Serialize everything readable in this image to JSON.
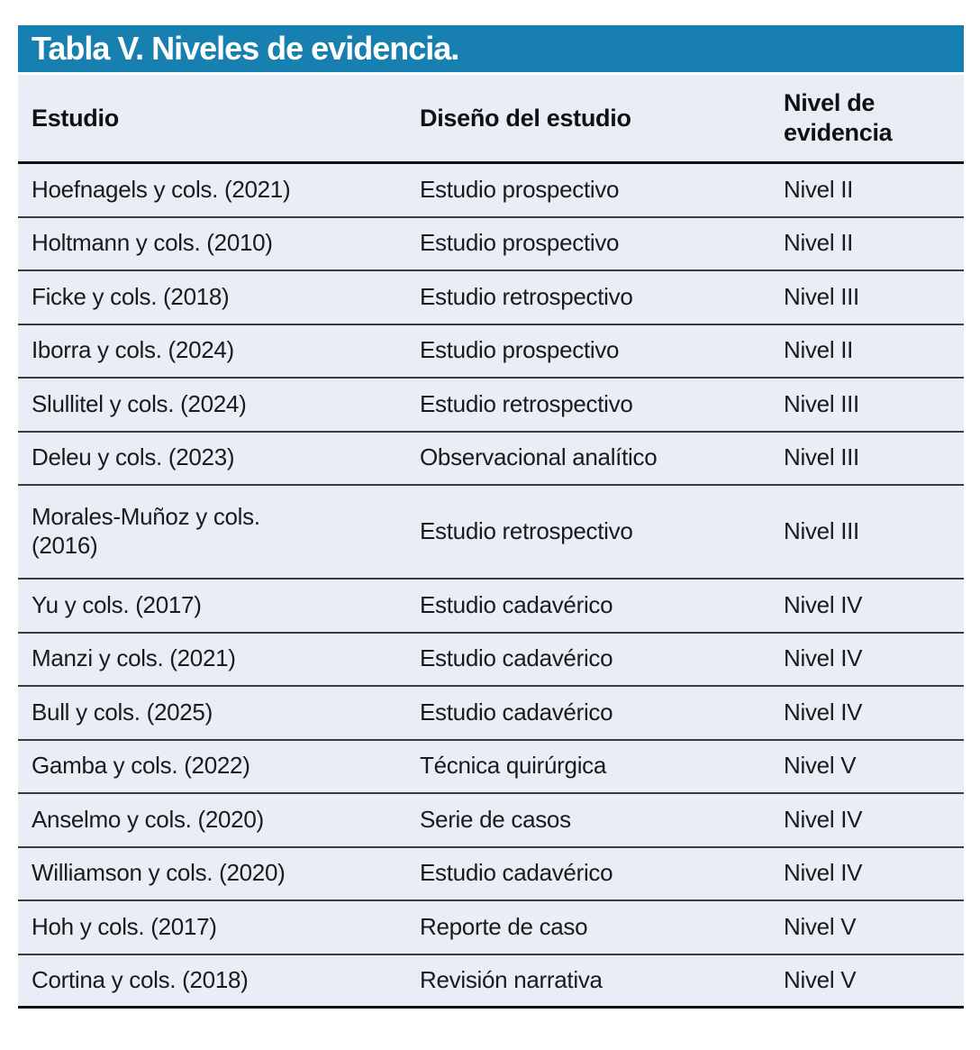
{
  "theme": {
    "header-bar": "#1780b0",
    "body-bg": "#e9edf5",
    "row-line": "#3a3d40",
    "heavy-line": "#101214"
  },
  "table": {
    "title": "Tabla V. Niveles de evidencia.",
    "columns": [
      "Estudio",
      "Diseño del estudio",
      "Nivel de evidencia"
    ],
    "rows": [
      {
        "estudio": "Hoefnagels y cols. (2021)",
        "diseno": "Estudio prospectivo",
        "nivel": "Nivel II"
      },
      {
        "estudio": "Holtmann y cols. (2010)",
        "diseno": "Estudio prospectivo",
        "nivel": "Nivel II"
      },
      {
        "estudio": "Ficke y cols. (2018)",
        "diseno": "Estudio retrospectivo",
        "nivel": "Nivel III"
      },
      {
        "estudio": "Iborra y cols. (2024)",
        "diseno": "Estudio prospectivo",
        "nivel": "Nivel II"
      },
      {
        "estudio": "Slullitel y cols. (2024)",
        "diseno": "Estudio retrospectivo",
        "nivel": "Nivel III"
      },
      {
        "estudio": "Deleu y cols. (2023)",
        "diseno": "Observacional analítico",
        "nivel": "Nivel III"
      },
      {
        "estudio": "Morales-Muñoz y cols.\n(2016)",
        "diseno": "Estudio retrospectivo",
        "nivel": "Nivel III"
      },
      {
        "estudio": "Yu y cols. (2017)",
        "diseno": "Estudio cadavérico",
        "nivel": "Nivel IV"
      },
      {
        "estudio": "Manzi y cols. (2021)",
        "diseno": "Estudio cadavérico",
        "nivel": "Nivel IV"
      },
      {
        "estudio": "Bull y cols. (2025)",
        "diseno": "Estudio cadavérico",
        "nivel": "Nivel IV"
      },
      {
        "estudio": "Gamba y cols. (2022)",
        "diseno": "Técnica quirúrgica",
        "nivel": "Nivel V"
      },
      {
        "estudio": "Anselmo y cols. (2020)",
        "diseno": "Serie de casos",
        "nivel": "Nivel IV"
      },
      {
        "estudio": "Williamson y cols. (2020)",
        "diseno": "Estudio cadavérico",
        "nivel": "Nivel IV"
      },
      {
        "estudio": "Hoh y cols. (2017)",
        "diseno": "Reporte de caso",
        "nivel": "Nivel V"
      },
      {
        "estudio": "Cortina y cols. (2018)",
        "diseno": "Revisión narrativa",
        "nivel": "Nivel V"
      }
    ]
  }
}
